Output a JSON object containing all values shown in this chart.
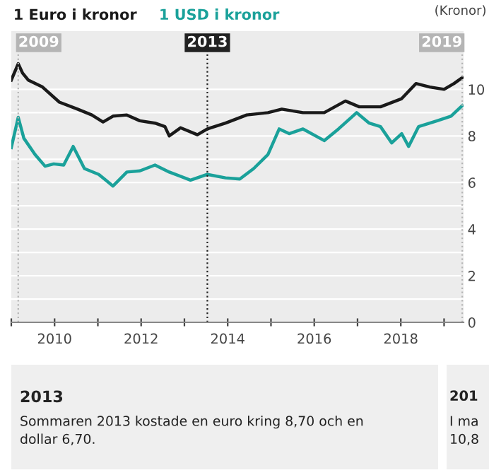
{
  "chart_data": {
    "type": "line",
    "ylabel": "(Kronor)",
    "xlim": [
      2009,
      2019.45
    ],
    "ylim": [
      0,
      12.5
    ],
    "xticks": [
      {
        "value": 2009,
        "label": null
      },
      2010,
      {
        "value": 2011,
        "label": null
      },
      2012,
      {
        "value": 2013,
        "label": null
      },
      2014,
      {
        "value": 2015,
        "label": null
      },
      2016,
      {
        "value": 2017,
        "label": null
      },
      2018,
      {
        "value": 2019,
        "label": null
      }
    ],
    "yticks": [
      0,
      {
        "value": 1,
        "label": null
      },
      2,
      {
        "value": 3,
        "label": null
      },
      4,
      {
        "value": 5,
        "label": null
      },
      6,
      {
        "value": 7,
        "label": null
      },
      8,
      {
        "value": 9,
        "label": null
      },
      10
    ],
    "grid": "y",
    "legend": "top left",
    "series": [
      {
        "name": "1 Euro i kronor",
        "color": "#1a1a1a",
        "x": [
          2009.0,
          2009.16,
          2009.26,
          2009.39,
          2009.72,
          2010.11,
          2010.53,
          2010.86,
          2011.12,
          2011.35,
          2011.67,
          2011.97,
          2012.32,
          2012.55,
          2012.65,
          2012.91,
          2013.3,
          2013.53,
          2013.95,
          2014.44,
          2014.93,
          2015.25,
          2015.74,
          2016.23,
          2016.72,
          2017.04,
          2017.53,
          2018.02,
          2018.35,
          2018.67,
          2019.0,
          2019.23,
          2019.42
        ],
        "values": [
          10.4,
          11.1,
          10.7,
          10.4,
          10.1,
          9.45,
          9.15,
          8.9,
          8.6,
          8.85,
          8.9,
          8.65,
          8.55,
          8.4,
          8.0,
          8.35,
          8.05,
          8.3,
          8.55,
          8.9,
          9.0,
          9.15,
          9.0,
          9.0,
          9.5,
          9.25,
          9.25,
          9.6,
          10.25,
          10.1,
          10.0,
          10.25,
          10.5
        ]
      },
      {
        "name": "1 USD i kronor",
        "color": "#1aa19a",
        "x": [
          2009.0,
          2009.16,
          2009.29,
          2009.55,
          2009.78,
          2009.98,
          2010.21,
          2010.43,
          2010.69,
          2011.02,
          2011.35,
          2011.67,
          2011.97,
          2012.32,
          2012.65,
          2013.14,
          2013.53,
          2013.95,
          2014.28,
          2014.6,
          2014.93,
          2015.19,
          2015.42,
          2015.74,
          2016.23,
          2016.56,
          2016.98,
          2017.27,
          2017.53,
          2017.79,
          2018.02,
          2018.18,
          2018.41,
          2018.84,
          2019.16,
          2019.42
        ],
        "values": [
          7.5,
          8.8,
          7.9,
          7.2,
          6.7,
          6.8,
          6.75,
          7.55,
          6.6,
          6.35,
          5.85,
          6.45,
          6.5,
          6.75,
          6.45,
          6.1,
          6.35,
          6.2,
          6.15,
          6.6,
          7.2,
          8.3,
          8.1,
          8.3,
          7.8,
          8.3,
          9.0,
          8.55,
          8.4,
          7.7,
          8.1,
          7.55,
          8.4,
          8.65,
          8.85,
          9.3
        ]
      }
    ],
    "ref_lines": [
      {
        "axis": "x",
        "value": 2009.16,
        "color": "#b5b5b5",
        "line_style": "dotted"
      },
      {
        "axis": "x",
        "value": 2013.53,
        "color": "#222222",
        "line_style": "dotted"
      },
      {
        "axis": "x",
        "value": 2019.42,
        "color": "#b5b5b5",
        "line_style": "dotted"
      }
    ],
    "annotations": [
      {
        "text": "2009",
        "x": 2009.16,
        "y": 12
      },
      {
        "text": "2013",
        "x": 2013.53,
        "y": 12
      },
      {
        "text": "2019",
        "x": 2019.42,
        "y": 12
      },
      "2013",
      "Sommaren 2013 kostade en euro kring 8,70 och en\ndollar 6,70.",
      "201",
      "I ma\n10,8"
    ]
  }
}
